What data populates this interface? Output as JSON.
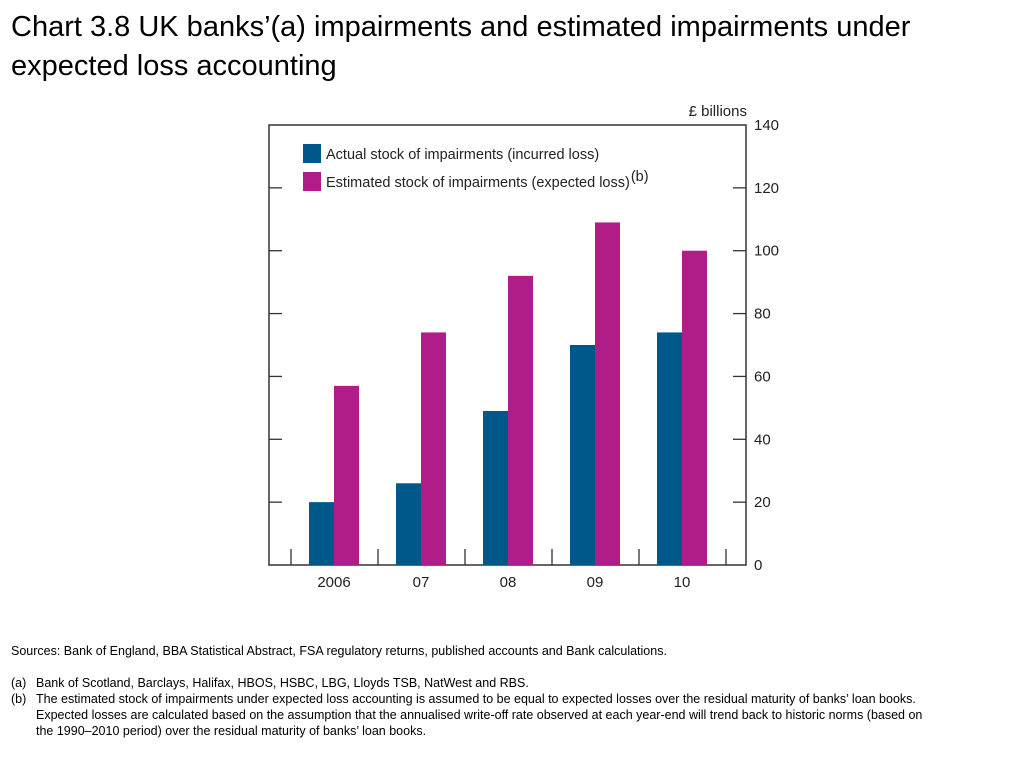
{
  "title": "Chart 3.8  UK banks’(a) impairments and estimated impairments under expected loss accounting",
  "notes": {
    "sources": "Sources:  Bank of England, BBA Statistical Abstract, FSA regulatory returns, published accounts and Bank calculations.",
    "footnotes": [
      {
        "mark": "(a)",
        "text": "Bank of Scotland, Barclays, Halifax, HBOS, HSBC, LBG, Lloyds TSB, NatWest and RBS."
      },
      {
        "mark": "(b)",
        "text": "The estimated stock of impairments under expected loss accounting is assumed to be equal to expected losses over the residual maturity of banks’ loan books.  Expected losses are calculated based on the assumption that the annualised write-off rate observed at each year-end will trend back to historic norms (based on the 1990–2010 period) over the residual maturity of banks’ loan books."
      }
    ]
  },
  "chart_data": {
    "type": "bar",
    "categories": [
      "2006",
      "07",
      "08",
      "09",
      "10"
    ],
    "series": [
      {
        "name": "Actual stock of impairments (incurred loss)",
        "values": [
          20,
          26,
          49,
          70,
          74
        ],
        "color": "#00578a"
      },
      {
        "name": "Estimated stock of impairments (expected loss)",
        "name_suffix": "(b)",
        "values": [
          57,
          74,
          92,
          109,
          100
        ],
        "color": "#b01c88"
      }
    ],
    "ylabel": "£ billions",
    "ylim": [
      0,
      140
    ],
    "yticks": [
      "0",
      "20",
      "40",
      "60",
      "80",
      "100",
      "120",
      "140"
    ],
    "y_axis_side": "right",
    "legend": "top-left",
    "grid": false
  }
}
